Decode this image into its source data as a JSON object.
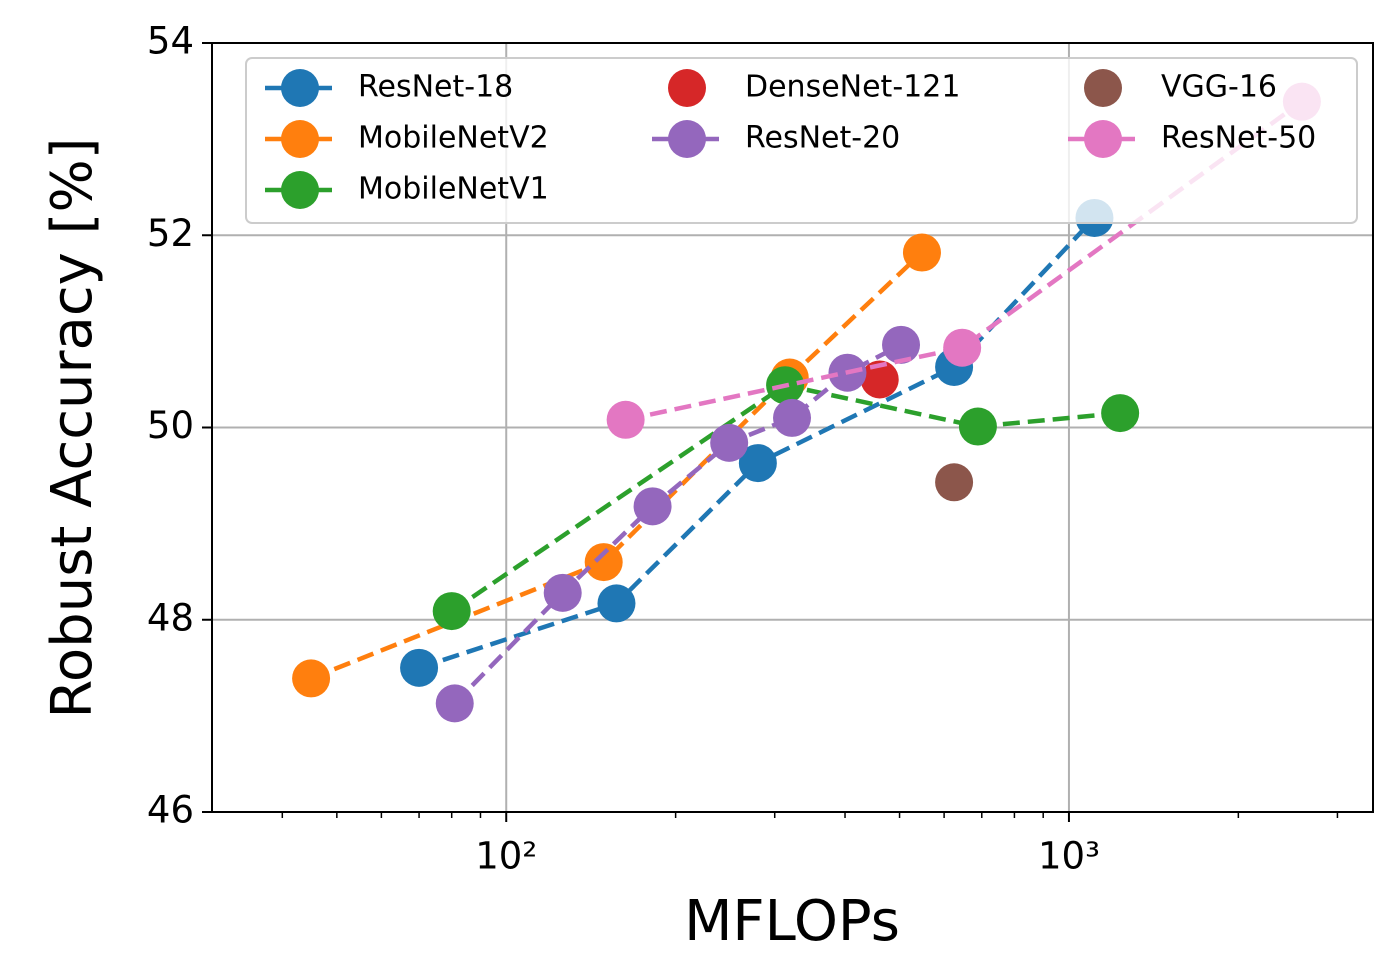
{
  "chart_data": {
    "type": "line",
    "xscale": "log",
    "grid": true,
    "legend": "upper center",
    "legend_columns": 3,
    "x_label": "MFLOPs",
    "y_label": "Robust Accuracy [%]",
    "xlim": [
      30,
      3470
    ],
    "ylim": [
      46,
      54
    ],
    "xticks": [
      {
        "value": 100,
        "label": "10²"
      },
      {
        "value": 1000,
        "label": "10³"
      }
    ],
    "xminorticks": [
      40,
      50,
      60,
      70,
      80,
      90,
      200,
      300,
      400,
      500,
      600,
      700,
      800,
      900,
      2000,
      3000
    ],
    "yticks": [
      46,
      48,
      50,
      52,
      54
    ],
    "series": [
      {
        "name": "ResNet-18",
        "color": "#1f77b4",
        "x": [
          70,
          157,
          280,
          625,
          1110
        ],
        "values": [
          47.5,
          48.17,
          49.63,
          50.63,
          52.18
        ]
      },
      {
        "name": "MobileNetV2",
        "color": "#ff7f0e",
        "x": [
          45,
          149,
          319,
          548
        ],
        "values": [
          47.39,
          48.6,
          50.52,
          51.82
        ]
      },
      {
        "name": "MobileNetV1",
        "color": "#2ca02c",
        "x": [
          80,
          313,
          689,
          1233
        ],
        "values": [
          48.09,
          50.44,
          50.01,
          50.15
        ]
      },
      {
        "name": "DenseNet-121",
        "color": "#d62728",
        "x": [
          461
        ],
        "values": [
          50.5
        ]
      },
      {
        "name": "ResNet-20",
        "color": "#9467bd",
        "x": [
          81,
          126,
          182,
          249,
          322,
          404,
          503
        ],
        "values": [
          47.13,
          48.28,
          49.18,
          49.84,
          50.1,
          50.57,
          50.86
        ]
      },
      {
        "name": "VGG-16",
        "color": "#8c564b",
        "x": [
          625
        ],
        "values": [
          49.43
        ]
      },
      {
        "name": "ResNet-50",
        "color": "#e377c2",
        "x": [
          163,
          646,
          2594
        ],
        "values": [
          50.08,
          50.83,
          53.39
        ]
      }
    ]
  }
}
